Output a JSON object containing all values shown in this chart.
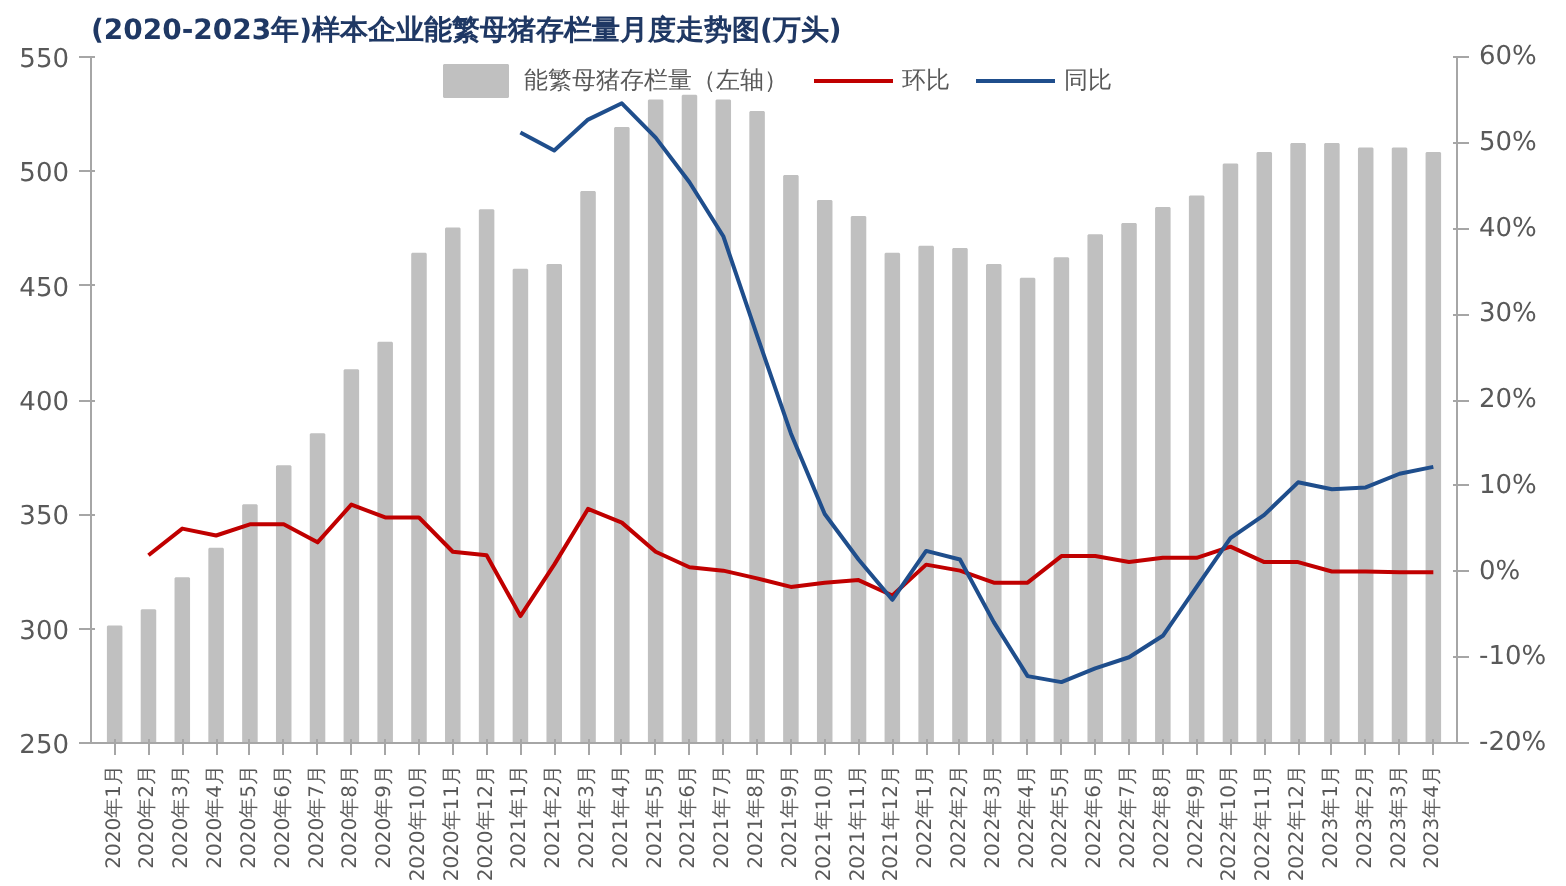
{
  "chart_data": {
    "type": "bar",
    "title": "(2020-2023年)样本企业能繁母猪存栏量月度走势图(万头)",
    "categories": [
      "2020年1月",
      "2020年2月",
      "2020年3月",
      "2020年4月",
      "2020年5月",
      "2020年6月",
      "2020年7月",
      "2020年8月",
      "2020年9月",
      "2020年10月",
      "2020年11月",
      "2020年12月",
      "2021年1月",
      "2021年2月",
      "2021年3月",
      "2021年4月",
      "2021年5月",
      "2021年6月",
      "2021年7月",
      "2021年8月",
      "2021年9月",
      "2021年10月",
      "2021年11月",
      "2021年12月",
      "2022年1月",
      "2022年2月",
      "2022年3月",
      "2022年4月",
      "2022年5月",
      "2022年6月",
      "2022年7月",
      "2022年8月",
      "2022年9月",
      "2022年10月",
      "2022年11月",
      "2022年12月",
      "2023年1月",
      "2023年2月",
      "2023年3月",
      "2023年4月"
    ],
    "series": [
      {
        "name": "能繁母猪存栏量（左轴）",
        "color": "#c0c0c0",
        "values": [
          301,
          308,
          322,
          335,
          354,
          371,
          385,
          413,
          425,
          464,
          475,
          483,
          457,
          459,
          491,
          519,
          531,
          533,
          531,
          526,
          498,
          487,
          480,
          464,
          467,
          466,
          459,
          453,
          462,
          472,
          477,
          484,
          489,
          503,
          508,
          512,
          512,
          510,
          510,
          508
        ]
      },
      {
        "name": "环比",
        "type": "line",
        "axis": "y2",
        "color": "#c00000",
        "values": [
          null,
          1.9,
          5.0,
          4.2,
          5.5,
          5.5,
          3.4,
          7.8,
          6.3,
          6.3,
          2.3,
          1.9,
          -5.2,
          0.8,
          7.3,
          5.7,
          2.3,
          0.5,
          0.1,
          -0.8,
          -1.8,
          -1.3,
          -1.0,
          -2.8,
          0.8,
          0.1,
          -1.3,
          -1.3,
          1.8,
          1.8,
          1.1,
          1.6,
          1.6,
          2.9,
          1.1,
          1.1,
          0.0,
          0.0,
          -0.1,
          -0.1
        ]
      },
      {
        "name": "同比",
        "type": "line",
        "axis": "y2",
        "color": "#1f4e8c",
        "values": [
          null,
          null,
          null,
          null,
          null,
          null,
          null,
          null,
          null,
          null,
          null,
          null,
          51.2,
          49.1,
          52.7,
          54.6,
          50.6,
          45.4,
          39.1,
          27.5,
          16.1,
          6.7,
          1.4,
          -3.3,
          2.4,
          1.4,
          -5.9,
          -12.2,
          -12.9,
          -11.3,
          -10.0,
          -7.5,
          -1.8,
          3.9,
          6.6,
          10.4,
          9.6,
          9.8,
          11.4,
          12.2
        ]
      }
    ],
    "ylim": [
      250,
      550
    ],
    "yticks": [
      250,
      300,
      350,
      400,
      450,
      500,
      550
    ],
    "y2lim": [
      -20,
      60
    ],
    "y2ticks": [
      {
        "value": -20,
        "label": "-20%"
      },
      {
        "value": -10,
        "label": "-10%"
      },
      {
        "value": 0,
        "label": "0%"
      },
      {
        "value": 10,
        "label": "10%"
      },
      {
        "value": 20,
        "label": "20%"
      },
      {
        "value": 30,
        "label": "30%"
      },
      {
        "value": 40,
        "label": "40%"
      },
      {
        "value": 50,
        "label": "50%"
      },
      {
        "value": 60,
        "label": "60%"
      }
    ],
    "legend": "top",
    "grid": false
  }
}
